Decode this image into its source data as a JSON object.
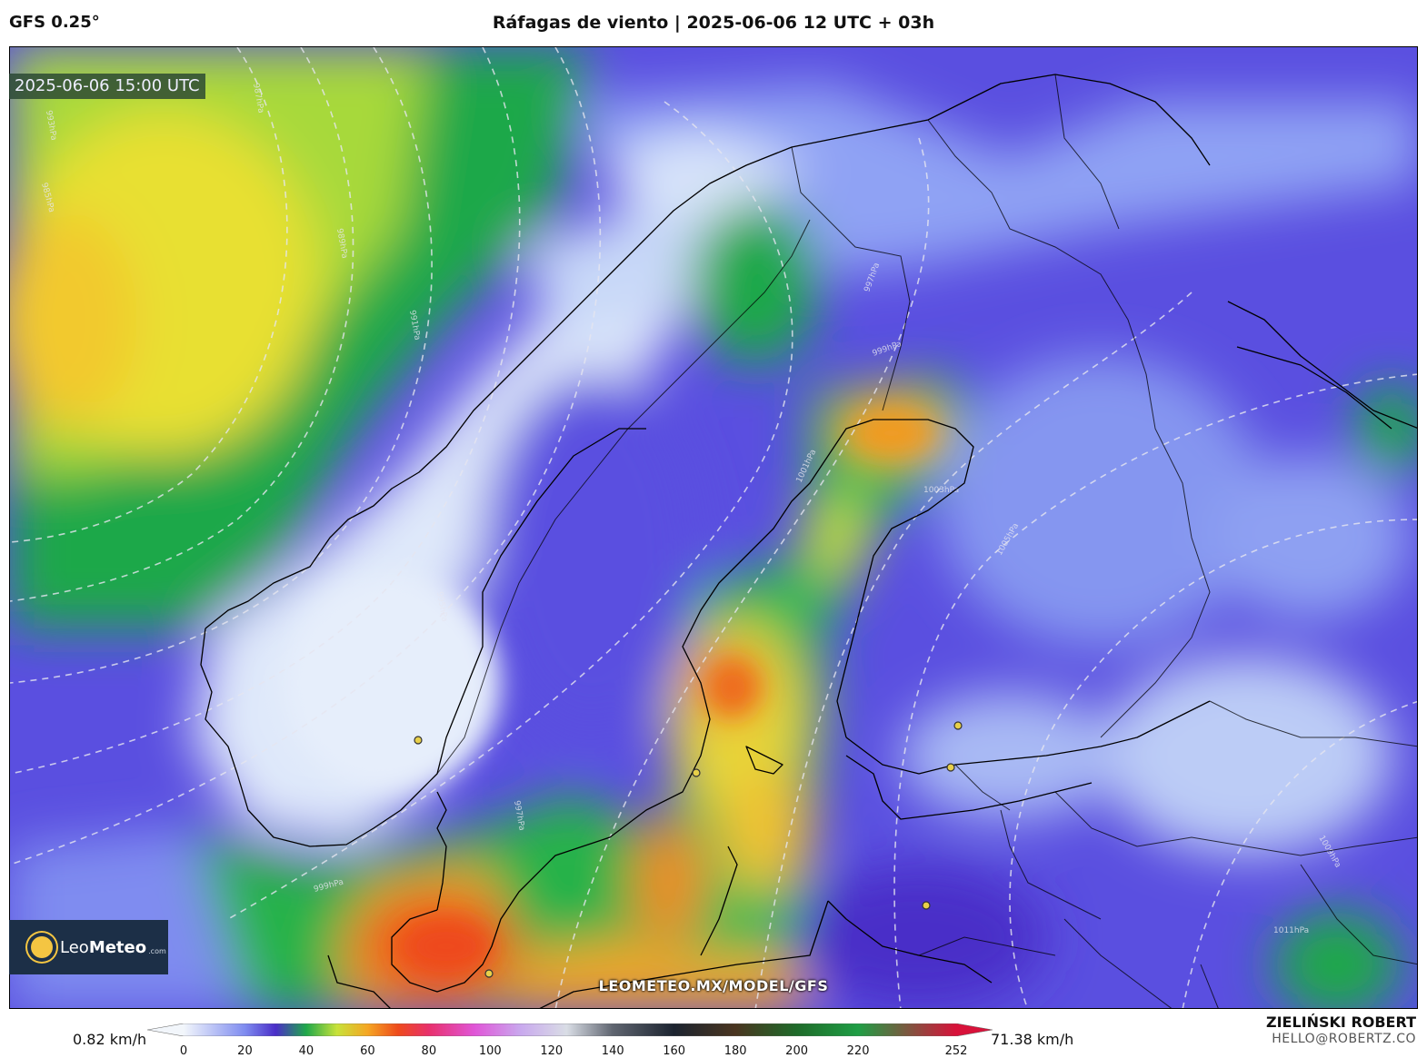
{
  "header": {
    "model": "GFS 0.25°",
    "title": "Ráfagas de viento | 2025-06-06 12 UTC + 03h"
  },
  "map": {
    "valid_time": "2025-06-06 15:00 UTC",
    "watermark": "LEOMETEO.MX/MODEL/GFS",
    "isobar_labels": [
      "985hPa",
      "987hPa",
      "989hPa",
      "991hPa",
      "993hPa",
      "995hPa",
      "997hPa",
      "999hPa",
      "1001hPa",
      "1003hPa",
      "1005hPa",
      "1009hPa",
      "1011hPa"
    ]
  },
  "logo": {
    "brand_light": "Leo",
    "brand_bold": "Meteo",
    "domain": ".com"
  },
  "colorbar": {
    "min_label": "0.82 km/h",
    "max_label": "71.38 km/h",
    "ticks": [
      "0",
      "20",
      "40",
      "60",
      "80",
      "100",
      "120",
      "140",
      "160",
      "180",
      "200",
      "220",
      "252"
    ],
    "tick_values": [
      0,
      20,
      40,
      60,
      80,
      100,
      120,
      140,
      160,
      180,
      200,
      220,
      252
    ],
    "range": [
      0,
      252
    ],
    "stops": [
      {
        "v": 0,
        "c": "#f2f6fb"
      },
      {
        "v": 20,
        "c": "#7f8cf0"
      },
      {
        "v": 30,
        "c": "#4a2ec8"
      },
      {
        "v": 40,
        "c": "#1fa84a"
      },
      {
        "v": 50,
        "c": "#c8e23a"
      },
      {
        "v": 60,
        "c": "#f5a623"
      },
      {
        "v": 70,
        "c": "#ee4a1c"
      },
      {
        "v": 80,
        "c": "#e8306c"
      },
      {
        "v": 95,
        "c": "#e056d8"
      },
      {
        "v": 110,
        "c": "#c9a9ee"
      },
      {
        "v": 125,
        "c": "#d9dde5"
      },
      {
        "v": 140,
        "c": "#5f6570"
      },
      {
        "v": 160,
        "c": "#1c2430"
      },
      {
        "v": 180,
        "c": "#4a3520"
      },
      {
        "v": 200,
        "c": "#1f6b2a"
      },
      {
        "v": 220,
        "c": "#1f9e45"
      },
      {
        "v": 252,
        "c": "#d8123a"
      }
    ]
  },
  "credits": {
    "author": "ZIELIŃSKI ROBERT",
    "email": "HELLO@ROBERTZ.CO"
  },
  "colors": {
    "calm": "#e2ecfa",
    "light": "#7d8cf0",
    "moderate": "#4a2ec8",
    "fresh": "#1fa84a",
    "strong": "#d4e23a",
    "gale": "#f5a623",
    "storm": "#ee4a1c"
  }
}
